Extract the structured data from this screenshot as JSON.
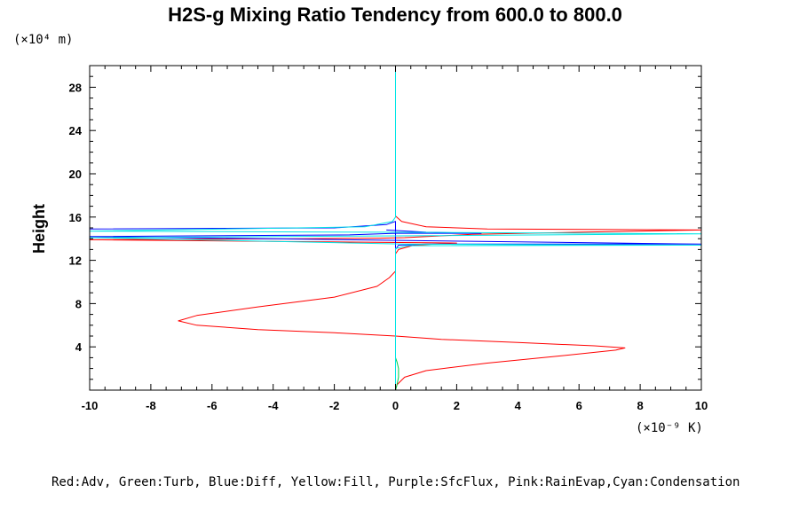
{
  "chart_data": {
    "type": "line",
    "title": "H2S-g Mixing Ratio Tendency from 600.0 to 800.0",
    "ylabel": "Height",
    "xlabel": "",
    "y_unit": "(×10⁴ m)",
    "x_unit": "(×10⁻⁹ K)",
    "xlim": [
      -10,
      10
    ],
    "ylim": [
      0,
      30
    ],
    "x_ticks": [
      "-10",
      "-8",
      "-6",
      "-4",
      "-2",
      "0",
      "2",
      "4",
      "6",
      "8",
      "10"
    ],
    "y_ticks": [
      "4",
      "8",
      "12",
      "16",
      "20",
      "24",
      "28"
    ],
    "legend_text": "Red:Adv, Green:Turb, Blue:Diff, Yellow:Fill, Purple:SfcFlux, Pink:RainEvap,Cyan:Condensation",
    "series": [
      {
        "name": "Adv",
        "color": "#ff0000",
        "points": [
          [
            0.0,
            0.0
          ],
          [
            0.05,
            0.5
          ],
          [
            0.3,
            1.2
          ],
          [
            1.0,
            1.8
          ],
          [
            3.0,
            2.5
          ],
          [
            5.5,
            3.2
          ],
          [
            7.2,
            3.7
          ],
          [
            7.5,
            3.9
          ],
          [
            6.5,
            4.1
          ],
          [
            4.0,
            4.4
          ],
          [
            1.5,
            4.7
          ],
          [
            0.0,
            5.0
          ],
          [
            -2.0,
            5.3
          ],
          [
            -4.5,
            5.6
          ],
          [
            -6.5,
            6.0
          ],
          [
            -7.1,
            6.4
          ],
          [
            -6.5,
            6.9
          ],
          [
            -4.5,
            7.7
          ],
          [
            -2.0,
            8.6
          ],
          [
            -0.6,
            9.6
          ],
          [
            -0.2,
            10.4
          ],
          [
            0.0,
            11.0
          ],
          [
            0.0,
            12.6
          ],
          [
            0.1,
            13.0
          ],
          [
            0.6,
            13.4
          ],
          [
            2.0,
            13.6
          ],
          [
            -10,
            13.9
          ],
          [
            -3,
            14.0
          ],
          [
            -0.5,
            14.05
          ],
          [
            0.3,
            14.1
          ],
          [
            2.5,
            14.4
          ],
          [
            6.0,
            14.6
          ],
          [
            10,
            14.8
          ],
          [
            3.0,
            14.9
          ],
          [
            1.0,
            15.1
          ],
          [
            0.2,
            15.6
          ],
          [
            0.0,
            16.1
          ]
        ]
      },
      {
        "name": "Turb",
        "color": "#00cc44",
        "points": [
          [
            0.0,
            0.0
          ],
          [
            0.05,
            0.5
          ],
          [
            0.1,
            1.2
          ],
          [
            0.1,
            2.0
          ],
          [
            0.05,
            2.6
          ],
          [
            0.0,
            3.0
          ]
        ]
      },
      {
        "name": "Diff",
        "color": "#0000ff",
        "points": [
          [
            -10,
            14.9
          ],
          [
            -2.0,
            15.0
          ],
          [
            -0.3,
            15.3
          ],
          [
            0.0,
            15.6
          ],
          [
            0.0,
            13.0
          ],
          [
            0.1,
            13.4
          ],
          [
            1.0,
            13.5
          ],
          [
            10,
            13.5
          ],
          [
            -10,
            14.2
          ],
          [
            -1.5,
            14.35
          ],
          [
            0.0,
            14.5
          ],
          [
            1.0,
            14.5
          ],
          [
            2.8,
            14.5
          ],
          [
            1.0,
            14.6
          ],
          [
            -0.3,
            14.8
          ]
        ]
      },
      {
        "name": "Condensation",
        "color": "#00e5e5",
        "points": [
          [
            0.0,
            0.0
          ],
          [
            0.0,
            12.0
          ],
          [
            0.0,
            13.1
          ],
          [
            0.4,
            13.35
          ],
          [
            10,
            13.4
          ],
          [
            0.3,
            13.5
          ],
          [
            -10,
            14.1
          ],
          [
            -0.5,
            14.25
          ],
          [
            10,
            14.45
          ],
          [
            -0.3,
            14.6
          ],
          [
            -10,
            14.7
          ],
          [
            -1.0,
            15.1
          ],
          [
            -0.1,
            15.6
          ],
          [
            0.0,
            16.0
          ],
          [
            0.0,
            30.0
          ]
        ]
      }
    ]
  }
}
